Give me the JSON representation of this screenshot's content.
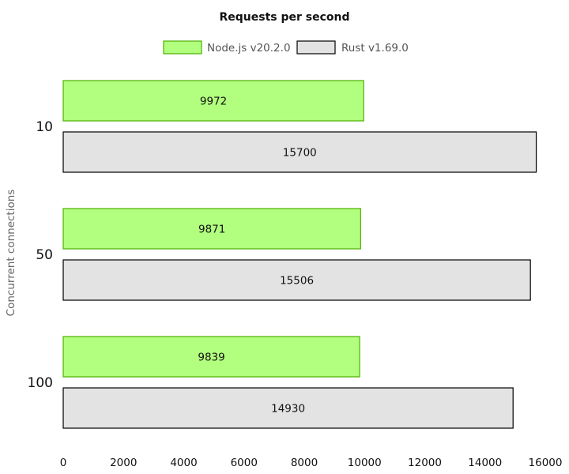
{
  "chart_data": {
    "type": "bar",
    "orientation": "horizontal",
    "title": "Requests per second",
    "xlabel": "",
    "ylabel": "Concurrent connections",
    "categories": [
      "10",
      "50",
      "100"
    ],
    "series": [
      {
        "name": "Node.js v20.2.0",
        "color": "#b2ff7f",
        "border": "#4caf00",
        "values": [
          9972,
          9871,
          9839
        ]
      },
      {
        "name": "Rust v1.69.0",
        "color": "#e3e3e3",
        "border": "#000000",
        "values": [
          15700,
          15506,
          14930
        ]
      }
    ],
    "xlim": [
      0,
      16000
    ],
    "xticks": [
      "0",
      "2000",
      "4000",
      "6000",
      "8000",
      "10000",
      "12000",
      "14000",
      "16000"
    ],
    "grid": false,
    "legend_position": "top-center"
  }
}
